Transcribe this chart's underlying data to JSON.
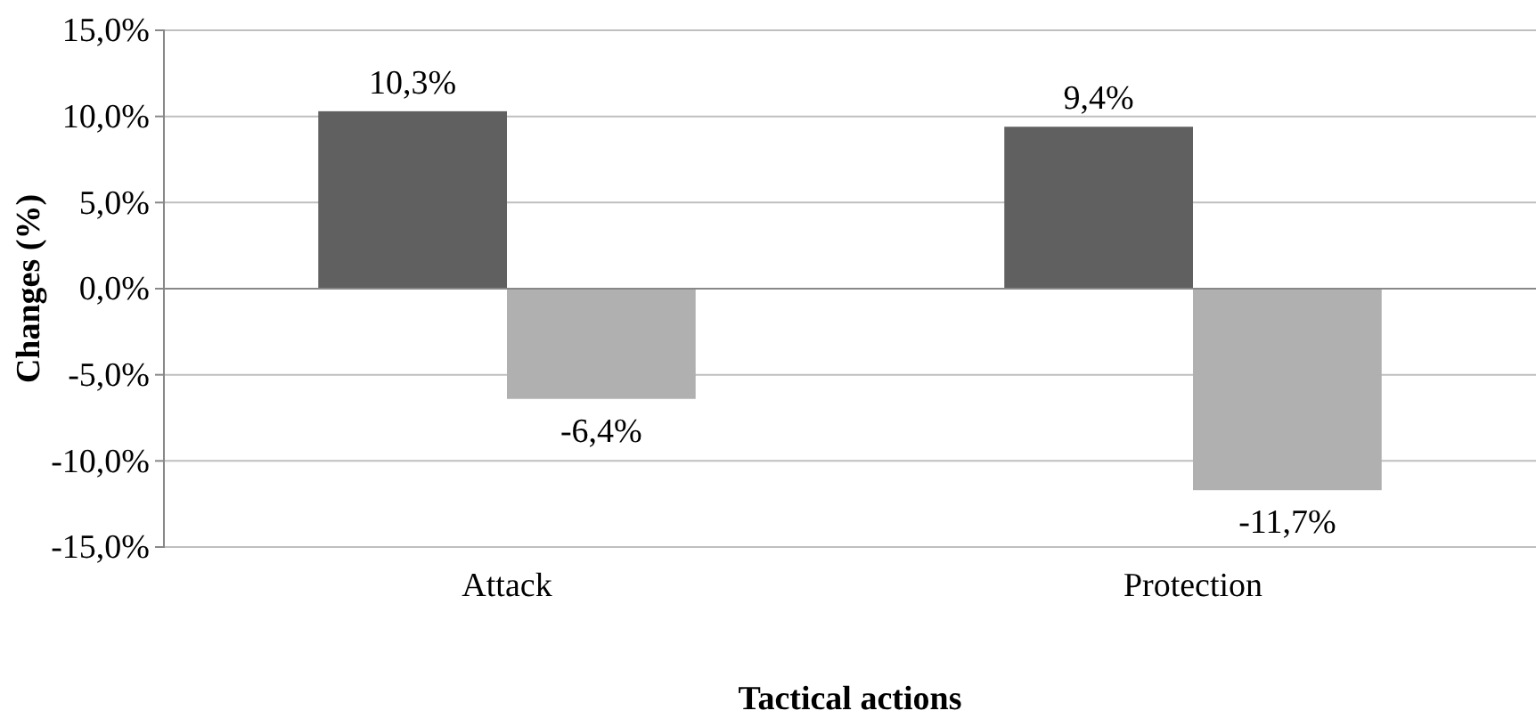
{
  "chart_data": {
    "type": "bar",
    "xlabel": "Tactical actions",
    "ylabel": "Changes (%)",
    "categories": [
      "Attack",
      "Protection"
    ],
    "series": [
      {
        "color": "#606060",
        "values": [
          10.3,
          9.4
        ],
        "value_labels": [
          "10,3%",
          "9,4%"
        ]
      },
      {
        "color": "#b0b0b0",
        "values": [
          -6.4,
          -11.7
        ],
        "value_labels": [
          "-6,4%",
          "-11,7%"
        ]
      }
    ],
    "ylim": [
      -15,
      15
    ],
    "yticks": [
      {
        "value": -15,
        "label": "-15,0%"
      },
      {
        "value": -10,
        "label": "-10,0%"
      },
      {
        "value": -5,
        "label": "-5,0%"
      },
      {
        "value": 0,
        "label": "0,0%"
      },
      {
        "value": 5,
        "label": "5,0%"
      },
      {
        "value": 10,
        "label": "10,0%"
      },
      {
        "value": 15,
        "label": "15,0%"
      }
    ],
    "grid": "y"
  }
}
